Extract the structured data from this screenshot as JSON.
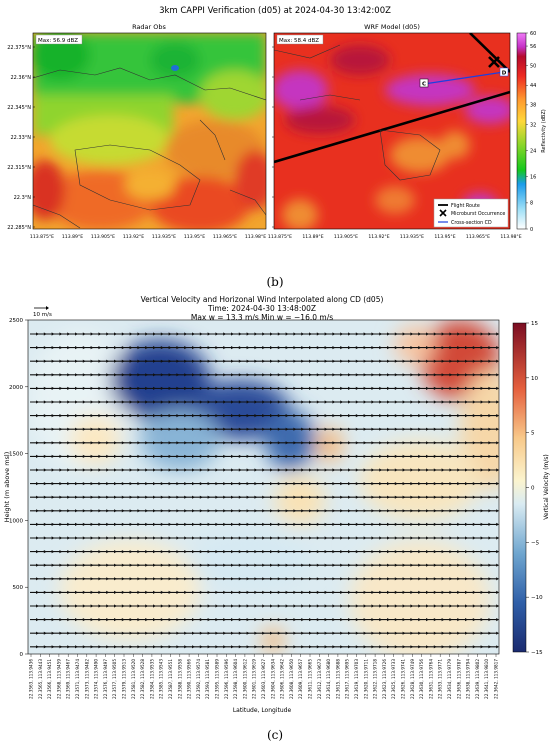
{
  "panel_b": {
    "title": "3km CAPPI Verification (d05) at 2024-04-30 13:42:00Z",
    "label": "(b)",
    "left": {
      "title": "Radar Obs",
      "max_label": "Max: 56.9 dBZ"
    },
    "right": {
      "title": "WRF Model (d05)",
      "max_label": "Max: 58.4 dBZ",
      "point_c": "C",
      "point_d": "D"
    },
    "yticks": [
      "22.375°N",
      "22.36°N",
      "22.345°N",
      "22.33°N",
      "22.315°N",
      "22.3°N",
      "22.285°N"
    ],
    "xticks": [
      "113.875°E",
      "113.89°E",
      "113.905°E",
      "113.92°E",
      "113.935°E",
      "113.95°E",
      "113.965°E",
      "113.98°E"
    ],
    "colorbar": {
      "label": "Reflectivity (dBZ)",
      "ticks": [
        "60",
        "56",
        "50",
        "44",
        "38",
        "32",
        "24",
        "16",
        "8",
        "0"
      ]
    },
    "legend": [
      "Flight Route",
      "Microburst Occurrence",
      "Cross-section CD"
    ]
  },
  "panel_c": {
    "label": "(c)",
    "arrow_label": "10 m/s",
    "title": "Vertical Velocity and Horizonal Wind Interpolated along CD (d05)",
    "title2": "Time: 2024-04-30 13:48:00Z",
    "title3": "Max w = 13.3 m/s Min w = −16.0 m/s",
    "ylabel": "Height (m above msl)",
    "xlabel": "Latitude, Longitude",
    "colorbar": {
      "label": "Vertical Velocity (m/s)",
      "ticks": [
        "15",
        "10",
        "5",
        "0",
        "−5",
        "−10",
        "−15"
      ]
    }
  },
  "chart_data": [
    {
      "type": "heatmap",
      "title": "3km CAPPI Verification (d05) at 2024-04-30 13:42:00Z",
      "subplots": [
        "Radar Obs",
        "WRF Model (d05)"
      ],
      "annotations": [
        "Max: 56.9 dBZ",
        "Max: 58.4 dBZ"
      ],
      "ylim": [
        22.28,
        22.385
      ],
      "xlim": [
        113.87,
        113.98
      ],
      "colorbar_range": [
        0,
        60
      ],
      "legend_placement": "bottom-right"
    },
    {
      "type": "heatmap",
      "title": "Vertical Velocity and Horizonal Wind Interpolated along CD (d05)",
      "ylabel": "Height (m above msl)",
      "xlabel": "Latitude, Longitude",
      "ylim": [
        0,
        2500
      ],
      "yticks": [
        0,
        500,
        1000,
        1500,
        2000,
        2500
      ],
      "colorbar_range": [
        -15,
        15
      ],
      "x_tick_labels": [
        "22.3563, 113.9436",
        "22.3565, 113.9443",
        "22.3566, 113.9451",
        "22.3568, 113.9459",
        "22.3569, 113.9467",
        "22.3571, 113.9474",
        "22.3573, 113.9482",
        "22.3574, 113.9490",
        "22.3576, 113.9497",
        "22.3577, 113.9505",
        "22.3579, 113.9513",
        "22.3581, 113.9520",
        "22.3582, 113.9528",
        "22.3584, 113.9535",
        "22.3585, 113.9543",
        "22.3587, 113.9551",
        "22.3588, 113.9558",
        "22.3590, 113.9566",
        "22.3592, 113.9574",
        "22.3593, 113.9581",
        "22.3595, 113.9589",
        "22.3596, 113.9596",
        "22.3598, 113.9604",
        "22.3600, 113.9612",
        "22.3601, 113.9619",
        "22.3603, 113.9627",
        "22.3604, 113.9634",
        "22.3606, 113.9642",
        "22.3608, 113.9650",
        "22.3609, 113.9657",
        "22.3611, 113.9665",
        "22.3612, 113.9673",
        "22.3614, 113.9680",
        "22.3615, 113.9688",
        "22.3617, 113.9695",
        "22.3619, 113.9703",
        "22.3620, 113.9711",
        "22.3622, 113.9718",
        "22.3623, 113.9726",
        "22.3625, 113.9733",
        "22.3626, 113.9741",
        "22.3628, 113.9749",
        "22.3630, 113.9756",
        "22.3631, 113.9764",
        "22.3633, 113.9771",
        "22.3634, 113.9779",
        "22.3636, 113.9787",
        "22.3638, 113.9794",
        "22.3639, 113.9802",
        "22.3641, 113.9810",
        "22.3642, 113.9817"
      ],
      "max_w": 13.3,
      "min_w": -16.0
    }
  ]
}
